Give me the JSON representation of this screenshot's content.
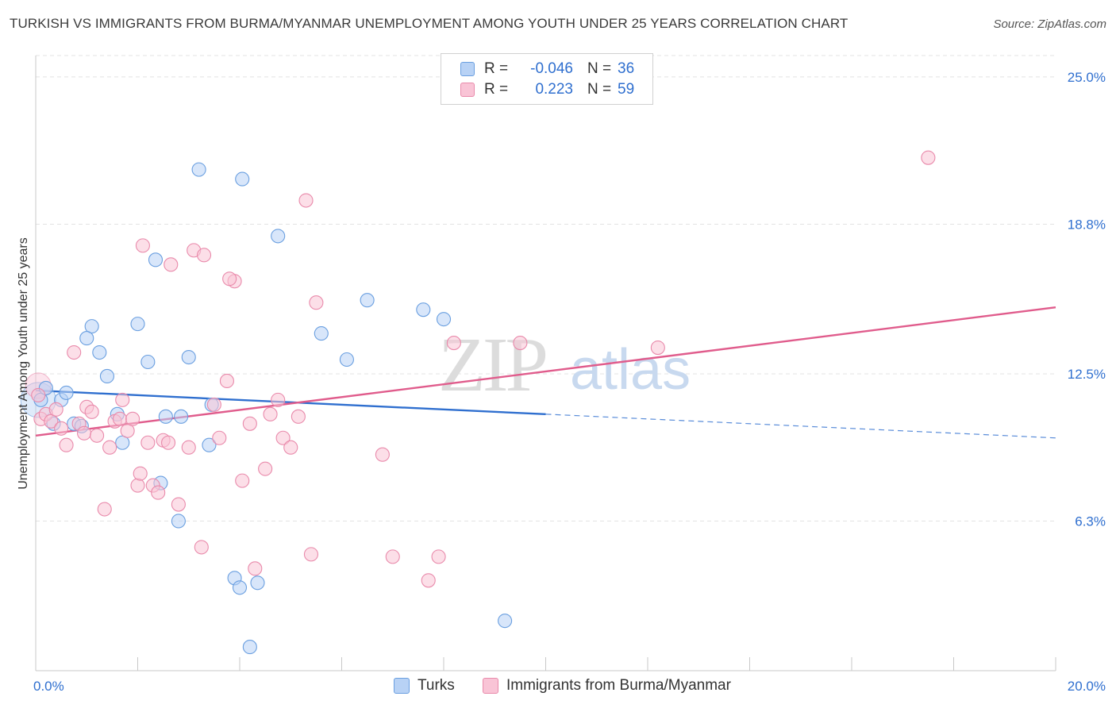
{
  "title": "TURKISH VS IMMIGRANTS FROM BURMA/MYANMAR UNEMPLOYMENT AMONG YOUTH UNDER 25 YEARS CORRELATION CHART",
  "source": "Source: ZipAtlas.com",
  "watermark": {
    "zip": "ZIP",
    "atlas": "atlas"
  },
  "legend": {
    "r_label": "R =",
    "n_label": "N =",
    "rows": [
      {
        "r": "-0.046",
        "n": "36"
      },
      {
        "r": "0.223",
        "n": "59"
      }
    ]
  },
  "bottom_legend": [
    "Turks",
    "Immigrants from Burma/Myanmar"
  ],
  "colors": {
    "turks_fill": "#b8d2f5",
    "turks_stroke": "#6a9fe0",
    "turks_line": "#2f6fcf",
    "burma_fill": "#f9c4d6",
    "burma_stroke": "#e98aab",
    "burma_line": "#e05c8c",
    "tick_label": "#2f6fcf",
    "grid": "#e3e3e3"
  },
  "chart_data": {
    "type": "scatter",
    "title": "TURKISH VS IMMIGRANTS FROM BURMA/MYANMAR UNEMPLOYMENT AMONG YOUTH UNDER 25 YEARS CORRELATION CHART",
    "xlabel": "",
    "ylabel": "Unemployment Among Youth under 25 years",
    "xlim": [
      0,
      20
    ],
    "ylim": [
      0,
      25.9
    ],
    "x_ticks": [
      0,
      2,
      4,
      6,
      8,
      10,
      12,
      14,
      16,
      18,
      20
    ],
    "x_tick_labels": [
      {
        "value": 0,
        "label": "0.0%"
      },
      {
        "value": 20,
        "label": "20.0%"
      }
    ],
    "y_ticks": [
      {
        "value": 6.3,
        "label": "6.3%"
      },
      {
        "value": 12.5,
        "label": "12.5%"
      },
      {
        "value": 18.8,
        "label": "18.8%"
      },
      {
        "value": 25.0,
        "label": "25.0%"
      }
    ],
    "grid": true,
    "legend_position": "top-center",
    "series": [
      {
        "name": "Turks",
        "points": [
          [
            0.1,
            11.4
          ],
          [
            0.2,
            11.9
          ],
          [
            0.35,
            10.4
          ],
          [
            0.5,
            11.4
          ],
          [
            0.6,
            11.7
          ],
          [
            0.75,
            10.4
          ],
          [
            1.1,
            14.5
          ],
          [
            1.25,
            13.4
          ],
          [
            1.4,
            12.4
          ],
          [
            1.6,
            10.8
          ],
          [
            2.0,
            14.6
          ],
          [
            2.2,
            13.0
          ],
          [
            2.35,
            17.3
          ],
          [
            2.55,
            10.7
          ],
          [
            2.85,
            10.7
          ],
          [
            3.0,
            13.2
          ],
          [
            3.2,
            21.1
          ],
          [
            3.45,
            11.2
          ],
          [
            4.05,
            20.7
          ],
          [
            4.35,
            3.7
          ],
          [
            4.75,
            18.3
          ],
          [
            5.6,
            14.2
          ],
          [
            6.1,
            13.1
          ],
          [
            6.5,
            15.6
          ],
          [
            7.6,
            15.2
          ],
          [
            8.0,
            14.8
          ],
          [
            9.2,
            2.1
          ],
          [
            1.7,
            9.6
          ],
          [
            2.45,
            7.9
          ],
          [
            2.8,
            6.3
          ],
          [
            3.4,
            9.5
          ],
          [
            3.9,
            3.9
          ],
          [
            4.0,
            3.5
          ],
          [
            4.2,
            1.0
          ],
          [
            1.0,
            14.0
          ],
          [
            0.9,
            10.3
          ]
        ],
        "trend": {
          "x": [
            0.0,
            10.0
          ],
          "y": [
            11.8,
            10.8
          ],
          "dashed_extension": {
            "x": [
              10.0,
              20.0
            ],
            "y": [
              10.8,
              9.8
            ]
          }
        }
      },
      {
        "name": "Immigrants from Burma/Myanmar",
        "points": [
          [
            0.05,
            11.6
          ],
          [
            0.1,
            10.6
          ],
          [
            0.2,
            10.8
          ],
          [
            0.3,
            10.5
          ],
          [
            0.4,
            11.0
          ],
          [
            0.5,
            10.2
          ],
          [
            0.6,
            9.5
          ],
          [
            0.75,
            13.4
          ],
          [
            0.85,
            10.4
          ],
          [
            0.95,
            10.0
          ],
          [
            1.0,
            11.1
          ],
          [
            1.1,
            10.9
          ],
          [
            1.2,
            9.9
          ],
          [
            1.35,
            6.8
          ],
          [
            1.45,
            9.4
          ],
          [
            1.55,
            10.5
          ],
          [
            1.65,
            10.6
          ],
          [
            1.7,
            11.4
          ],
          [
            1.8,
            10.1
          ],
          [
            1.9,
            10.6
          ],
          [
            2.0,
            7.8
          ],
          [
            2.05,
            8.3
          ],
          [
            2.1,
            17.9
          ],
          [
            2.2,
            9.6
          ],
          [
            2.3,
            7.8
          ],
          [
            2.4,
            7.5
          ],
          [
            2.5,
            9.7
          ],
          [
            2.6,
            9.6
          ],
          [
            2.65,
            17.1
          ],
          [
            2.8,
            7.0
          ],
          [
            3.0,
            9.4
          ],
          [
            3.1,
            17.7
          ],
          [
            3.25,
            5.2
          ],
          [
            3.3,
            17.5
          ],
          [
            3.5,
            11.2
          ],
          [
            3.6,
            9.8
          ],
          [
            3.75,
            12.2
          ],
          [
            3.9,
            16.4
          ],
          [
            4.05,
            8.0
          ],
          [
            4.2,
            10.4
          ],
          [
            4.3,
            4.3
          ],
          [
            4.5,
            8.5
          ],
          [
            4.6,
            10.8
          ],
          [
            4.75,
            11.4
          ],
          [
            4.85,
            9.8
          ],
          [
            5.0,
            9.4
          ],
          [
            5.15,
            10.7
          ],
          [
            5.3,
            19.8
          ],
          [
            5.4,
            4.9
          ],
          [
            5.5,
            15.5
          ],
          [
            6.8,
            9.1
          ],
          [
            7.0,
            4.8
          ],
          [
            7.7,
            3.8
          ],
          [
            7.9,
            4.8
          ],
          [
            8.2,
            13.8
          ],
          [
            9.5,
            13.8
          ],
          [
            12.2,
            13.6
          ],
          [
            17.5,
            21.6
          ],
          [
            3.8,
            16.5
          ]
        ],
        "trend": {
          "x": [
            0.0,
            20.0
          ],
          "y": [
            9.9,
            15.3
          ]
        }
      }
    ]
  }
}
